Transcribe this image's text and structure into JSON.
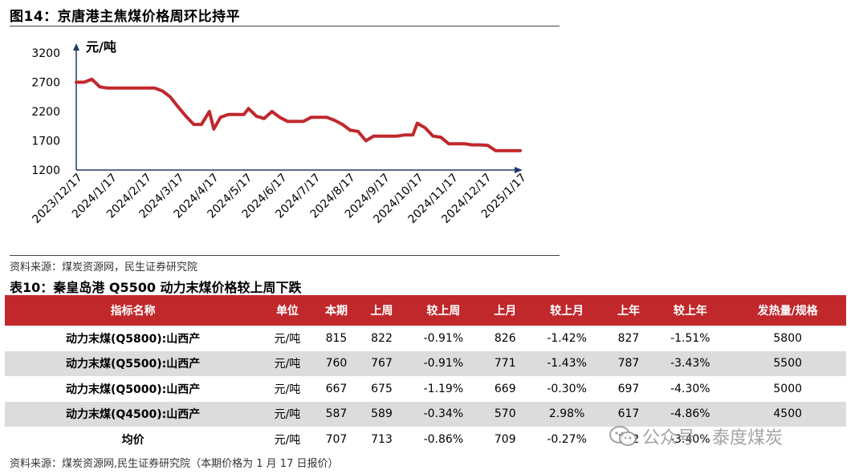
{
  "figure_title": "图14：京唐港主焦煤价格周环比持平",
  "chart_data": {
    "type": "line",
    "title": "图14：京唐港主焦煤价格周环比持平",
    "ylabel": "元/吨",
    "ylim": [
      1200,
      3200
    ],
    "yticks": [
      1200,
      1700,
      2200,
      2700,
      3200
    ],
    "xticks": [
      "2023/12/17",
      "2024/1/17",
      "2024/2/17",
      "2024/3/17",
      "2024/4/17",
      "2024/5/17",
      "2024/6/17",
      "2024/7/17",
      "2024/8/17",
      "2024/9/17",
      "2024/10/17",
      "2024/11/17",
      "2024/12/17",
      "2025/1/17"
    ],
    "xdomain": [
      "2023-12-17",
      "2025-01-17"
    ],
    "series": [
      {
        "color": "#c0282c",
        "points": [
          [
            "2023-12-17",
            2700
          ],
          [
            "2023-12-24",
            2700
          ],
          [
            "2023-12-31",
            2750
          ],
          [
            "2024-01-07",
            2620
          ],
          [
            "2024-01-14",
            2600
          ],
          [
            "2024-01-21",
            2600
          ],
          [
            "2024-01-28",
            2600
          ],
          [
            "2024-02-04",
            2600
          ],
          [
            "2024-02-11",
            2600
          ],
          [
            "2024-02-18",
            2600
          ],
          [
            "2024-02-25",
            2600
          ],
          [
            "2024-03-03",
            2550
          ],
          [
            "2024-03-10",
            2450
          ],
          [
            "2024-03-17",
            2280
          ],
          [
            "2024-03-24",
            2120
          ],
          [
            "2024-03-31",
            1980
          ],
          [
            "2024-04-07",
            1980
          ],
          [
            "2024-04-14",
            2200
          ],
          [
            "2024-04-18",
            1900
          ],
          [
            "2024-04-24",
            2100
          ],
          [
            "2024-05-01",
            2150
          ],
          [
            "2024-05-08",
            2150
          ],
          [
            "2024-05-15",
            2150
          ],
          [
            "2024-05-19",
            2250
          ],
          [
            "2024-05-26",
            2120
          ],
          [
            "2024-06-02",
            2080
          ],
          [
            "2024-06-09",
            2200
          ],
          [
            "2024-06-16",
            2100
          ],
          [
            "2024-06-23",
            2030
          ],
          [
            "2024-06-30",
            2030
          ],
          [
            "2024-07-07",
            2030
          ],
          [
            "2024-07-14",
            2100
          ],
          [
            "2024-07-21",
            2100
          ],
          [
            "2024-07-28",
            2100
          ],
          [
            "2024-08-04",
            2050
          ],
          [
            "2024-08-11",
            1980
          ],
          [
            "2024-08-18",
            1880
          ],
          [
            "2024-08-25",
            1860
          ],
          [
            "2024-09-01",
            1700
          ],
          [
            "2024-09-08",
            1780
          ],
          [
            "2024-09-15",
            1780
          ],
          [
            "2024-09-22",
            1780
          ],
          [
            "2024-09-29",
            1780
          ],
          [
            "2024-10-06",
            1800
          ],
          [
            "2024-10-13",
            1800
          ],
          [
            "2024-10-17",
            2000
          ],
          [
            "2024-10-24",
            1920
          ],
          [
            "2024-10-31",
            1780
          ],
          [
            "2024-11-07",
            1760
          ],
          [
            "2024-11-14",
            1650
          ],
          [
            "2024-11-21",
            1650
          ],
          [
            "2024-11-28",
            1650
          ],
          [
            "2024-12-05",
            1630
          ],
          [
            "2024-12-12",
            1630
          ],
          [
            "2024-12-19",
            1620
          ],
          [
            "2024-12-26",
            1530
          ],
          [
            "2025-01-02",
            1530
          ],
          [
            "2025-01-09",
            1530
          ],
          [
            "2025-01-17",
            1530
          ]
        ]
      }
    ]
  },
  "chart_source": "资料来源：煤炭资源网，民生证券研究院",
  "table_title": "表10：秦皇岛港 Q5500 动力末煤价格较上周下跌",
  "table": {
    "headers": [
      "指标名称",
      "单位",
      "本期",
      "上周",
      "较上周",
      "上月",
      "较上月",
      "上年",
      "较上年",
      "发热量/规格"
    ],
    "rows": [
      [
        "动力末煤(Q5800):山西产",
        "元/吨",
        "815",
        "822",
        "-0.91%",
        "826",
        "-1.42%",
        "827",
        "-1.51%",
        "5800"
      ],
      [
        "动力末煤(Q5500):山西产",
        "元/吨",
        "760",
        "767",
        "-0.91%",
        "771",
        "-1.43%",
        "787",
        "-3.43%",
        "5500"
      ],
      [
        "动力末煤(Q5000):山西产",
        "元/吨",
        "667",
        "675",
        "-1.19%",
        "669",
        "-0.30%",
        "697",
        "-4.30%",
        "5000"
      ],
      [
        "动力末煤(Q4500):山西产",
        "元/吨",
        "587",
        "589",
        "-0.34%",
        "570",
        "2.98%",
        "617",
        "-4.86%",
        "4500"
      ],
      [
        "均价",
        "元/吨",
        "707",
        "713",
        "-0.86%",
        "709",
        "-0.27%",
        "732",
        "-3.40%",
        ""
      ]
    ]
  },
  "table_source": "资料来源：煤炭资源网,民生证券研究院（本期价格为 1 月 17 日报价）",
  "watermark": "公众号 · 泰度煤炭"
}
